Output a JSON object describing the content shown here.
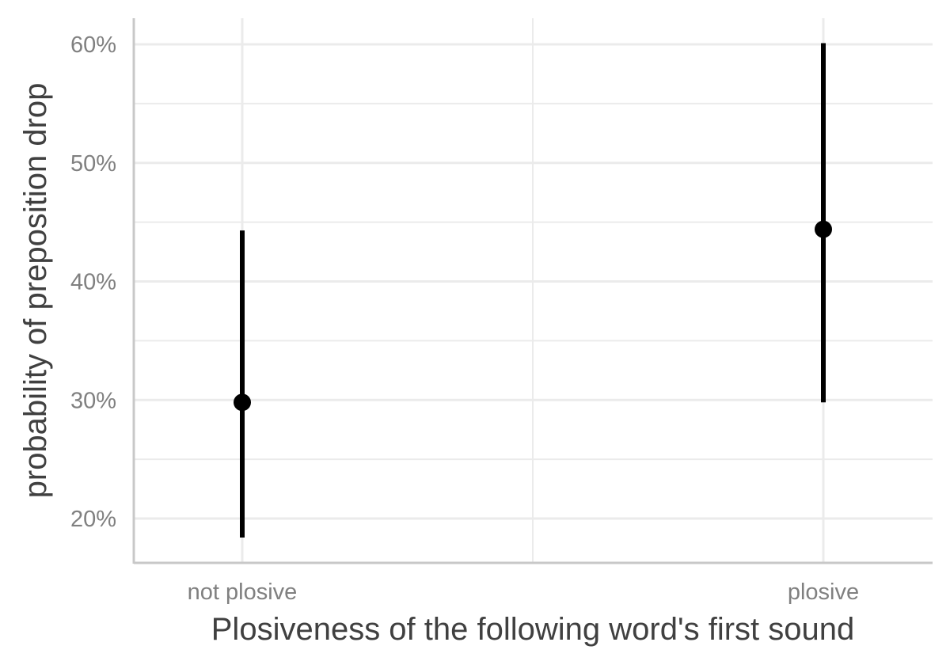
{
  "chart_data": {
    "type": "pointrange",
    "categories": [
      "not plosive",
      "plosive"
    ],
    "estimate": [
      0.298,
      0.444
    ],
    "lower": [
      0.184,
      0.298
    ],
    "upper": [
      0.443,
      0.601
    ],
    "title": "",
    "xlabel": "Plosiveness of the following word's first sound",
    "ylabel": "probability of preposition drop",
    "ylim": [
      0.165,
      0.635
    ],
    "yticks": [
      0.2,
      0.3,
      0.4,
      0.5,
      0.6
    ],
    "ytick_labels": [
      "20%",
      "30%",
      "40%",
      "50%",
      "60%"
    ],
    "yminor": [
      0.25,
      0.35,
      0.45,
      0.55
    ],
    "grid": true,
    "legend": "none",
    "point_color": "#000000",
    "grid_color": "#ebebeb",
    "axis_color": "#c8c8c8"
  }
}
